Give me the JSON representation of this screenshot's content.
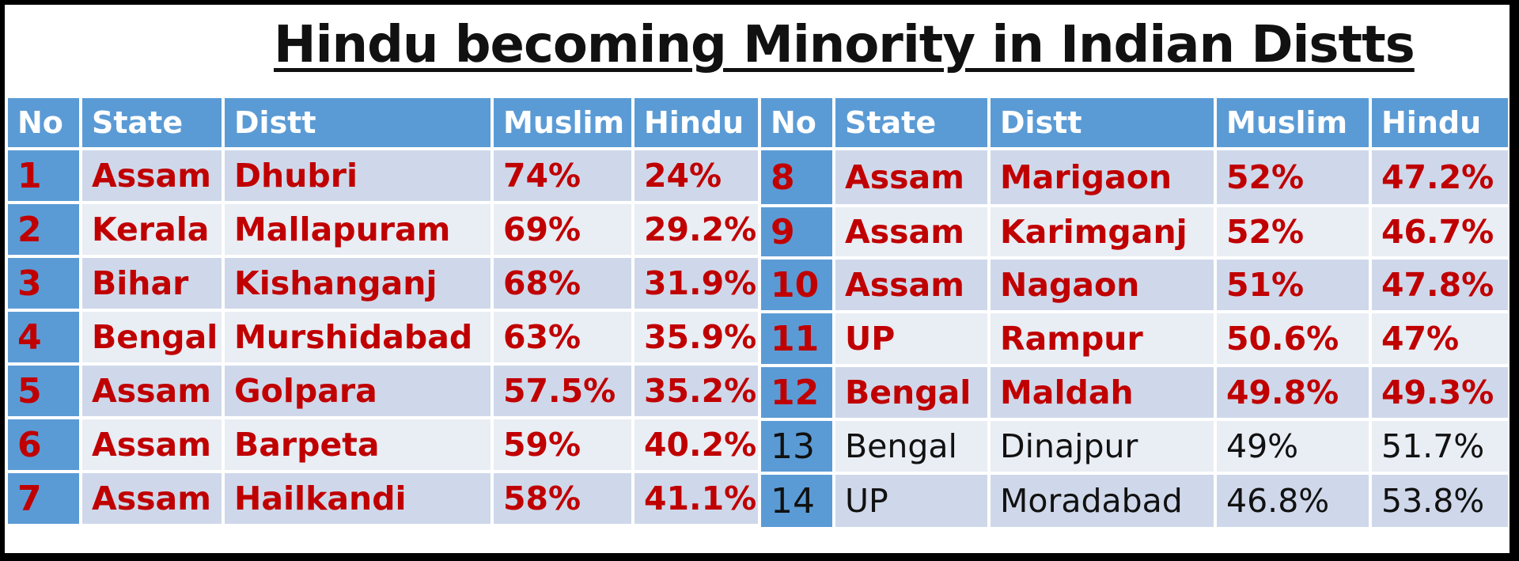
{
  "title": "Hindu becoming Minority in Indian Distts",
  "chart_data": {
    "type": "table",
    "title": "Hindu becoming Minority in Indian Distts",
    "columns": [
      "No",
      "State",
      "Distt",
      "Muslim",
      "Hindu"
    ],
    "rows": [
      {
        "no": "1",
        "state": "Assam",
        "distt": "Dhubri",
        "muslim": "74%",
        "hindu": "24%"
      },
      {
        "no": "2",
        "state": "Kerala",
        "distt": "Mallapuram",
        "muslim": "69%",
        "hindu": "29.2%"
      },
      {
        "no": "3",
        "state": "Bihar",
        "distt": "Kishanganj",
        "muslim": "68%",
        "hindu": "31.9%"
      },
      {
        "no": "4",
        "state": "Bengal",
        "distt": "Murshidabad",
        "muslim": "63%",
        "hindu": "35.9%"
      },
      {
        "no": "5",
        "state": "Assam",
        "distt": "Golpara",
        "muslim": "57.5%",
        "hindu": "35.2%"
      },
      {
        "no": "6",
        "state": "Assam",
        "distt": "Barpeta",
        "muslim": "59%",
        "hindu": "40.2%"
      },
      {
        "no": "7",
        "state": "Assam",
        "distt": "Hailkandi",
        "muslim": "58%",
        "hindu": "41.1%"
      },
      {
        "no": "8",
        "state": "Assam",
        "distt": "Marigaon",
        "muslim": "52%",
        "hindu": "47.2%"
      },
      {
        "no": "9",
        "state": "Assam",
        "distt": "Karimganj",
        "muslim": "52%",
        "hindu": "46.7%"
      },
      {
        "no": "10",
        "state": "Assam",
        "distt": "Nagaon",
        "muslim": "51%",
        "hindu": "47.8%"
      },
      {
        "no": "11",
        "state": "UP",
        "distt": "Rampur",
        "muslim": "50.6%",
        "hindu": "47%"
      },
      {
        "no": "12",
        "state": "Bengal",
        "distt": "Maldah",
        "muslim": "49.8%",
        "hindu": "49.3%"
      },
      {
        "no": "13",
        "state": "Bengal",
        "distt": "Dinajpur",
        "muslim": "49%",
        "hindu": "51.7%"
      },
      {
        "no": "14",
        "state": "UP",
        "distt": "Moradabad",
        "muslim": "46.8%",
        "hindu": "53.8%"
      }
    ]
  },
  "colors": {
    "header_bg": "#5b9bd5",
    "header_text": "#ffffff",
    "row_alt": "#cfd8ea",
    "row_plain": "#e9edf4",
    "majority_muslim_text": "#c00000",
    "majority_hindu_text": "#111111"
  }
}
